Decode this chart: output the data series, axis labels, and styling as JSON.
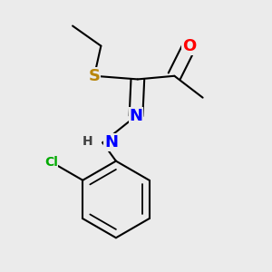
{
  "background_color": "#ebebeb",
  "atom_colors": {
    "S": "#b8860b",
    "N": "#0000ff",
    "O": "#ff0000",
    "Cl": "#00aa00",
    "C": "#000000",
    "H": "#404040"
  },
  "bond_color": "#000000",
  "bond_width": 1.5,
  "font_size_atom": 13,
  "font_size_small": 10
}
